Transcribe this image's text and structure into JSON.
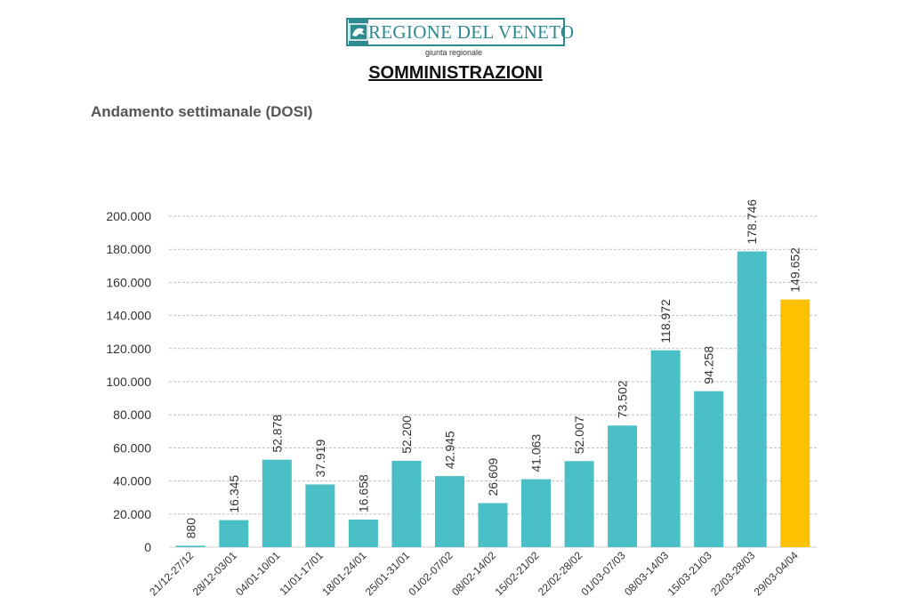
{
  "header": {
    "org_name": "REGIONE DEL VENETO",
    "org_subtitle": "giunta regionale",
    "page_title": "SOMMINISTRAZIONI"
  },
  "colors": {
    "bar": "#4BBFC6",
    "highlight_bar": "#FFC000",
    "brand": "#2D8A8F",
    "grid": "#BFBFBF"
  },
  "chart_data": {
    "type": "bar",
    "title": "Andamento settimanale (DOSI)",
    "xlabel": "",
    "ylabel": "",
    "ylim": [
      0,
      200000
    ],
    "y_ticks": [
      0,
      20000,
      40000,
      60000,
      80000,
      100000,
      120000,
      140000,
      160000,
      180000,
      200000
    ],
    "y_tick_labels": [
      "0",
      "20.000",
      "40.000",
      "60.000",
      "80.000",
      "100.000",
      "120.000",
      "140.000",
      "160.000",
      "180.000",
      "200.000"
    ],
    "grid": true,
    "categories": [
      "21/12-27/12",
      "28/12-03/01",
      "04/01-10/01",
      "11/01-17/01",
      "18/01-24/01",
      "25/01-31/01",
      "01/02-07/02",
      "08/02-14/02",
      "15/02-21/02",
      "22/02-28/02",
      "01/03-07/03",
      "08/03-14/03",
      "15/03-21/03",
      "22/03-28/03",
      "29/03-04/04"
    ],
    "values": [
      880,
      16345,
      52878,
      37919,
      16658,
      52200,
      42945,
      26609,
      41063,
      52007,
      73502,
      118972,
      94258,
      178746,
      149652
    ],
    "value_labels": [
      "880",
      "16.345",
      "52.878",
      "37.919",
      "16.658",
      "52.200",
      "42.945",
      "26.609",
      "41.063",
      "52.007",
      "73.502",
      "118.972",
      "94.258",
      "178.746",
      "149.652"
    ],
    "highlight_index": 14
  }
}
